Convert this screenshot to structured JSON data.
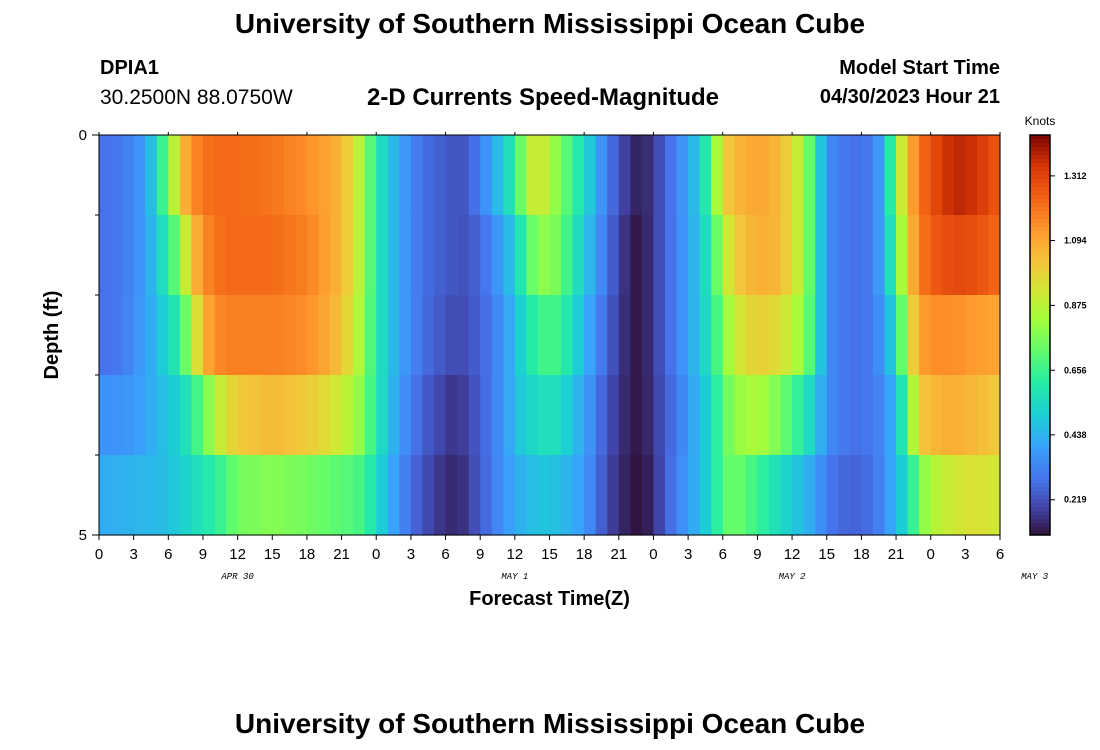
{
  "header": {
    "title": "University of Southern Mississippi Ocean Cube",
    "station_id": "DPIA1",
    "coordinates": "30.2500N  88.0750W",
    "subtitle": "2-D Currents Speed-Magnitude",
    "model_start_label": "Model Start Time",
    "model_start_value": "04/30/2023 Hour 21"
  },
  "footer": {
    "title": "University of Southern Mississippi Ocean Cube"
  },
  "chart_data": {
    "type": "heatmap",
    "xlabel": "Forecast Time(Z)",
    "ylabel": "Depth (ft)",
    "x_tick_labels": [
      "0",
      "3",
      "6",
      "9",
      "12",
      "15",
      "18",
      "21",
      "0",
      "3",
      "6",
      "9",
      "12",
      "15",
      "18",
      "21",
      "0",
      "3",
      "6",
      "9",
      "12",
      "15",
      "18",
      "21",
      "0",
      "3",
      "6"
    ],
    "y_tick_labels": [
      "0",
      "5"
    ],
    "day_labels": [
      {
        "label": "APR 30",
        "center_hour": 12
      },
      {
        "label": "MAY 1",
        "center_hour": 36
      },
      {
        "label": "MAY 2",
        "center_hour": 60
      },
      {
        "label": "MAY 3",
        "center_hour": 81
      }
    ],
    "hours_range": [
      0,
      78
    ],
    "depth_range": [
      0,
      5
    ],
    "colorbar": {
      "title": "Knots",
      "tick_labels": [
        "1.312",
        "1.094",
        "0.875",
        "0.656",
        "0.438",
        "0.219"
      ],
      "tick_values": [
        1.312,
        1.094,
        0.875,
        0.656,
        0.438,
        0.219
      ],
      "range": [
        0.1,
        1.45
      ]
    },
    "depth_rows": [
      0.5,
      1.5,
      2.5,
      3.5,
      4.5
    ],
    "speed_keyframes": [
      {
        "hour": 0,
        "depth_speeds": [
          0.28,
          0.28,
          0.28,
          0.36,
          0.42
        ]
      },
      {
        "hour": 2,
        "depth_speeds": [
          0.3,
          0.3,
          0.3,
          0.36,
          0.43
        ]
      },
      {
        "hour": 4,
        "depth_speeds": [
          0.38,
          0.38,
          0.4,
          0.4,
          0.45
        ]
      },
      {
        "hour": 5,
        "depth_speeds": [
          0.55,
          0.5,
          0.45,
          0.45,
          0.45
        ]
      },
      {
        "hour": 6,
        "depth_speeds": [
          0.75,
          0.62,
          0.55,
          0.48,
          0.47
        ]
      },
      {
        "hour": 7,
        "depth_speeds": [
          1.0,
          0.78,
          0.62,
          0.52,
          0.5
        ]
      },
      {
        "hour": 8,
        "depth_speeds": [
          1.15,
          1.02,
          0.85,
          0.62,
          0.55
        ]
      },
      {
        "hour": 9,
        "depth_speeds": [
          1.2,
          1.15,
          1.05,
          0.72,
          0.58
        ]
      },
      {
        "hour": 10,
        "depth_speeds": [
          1.22,
          1.2,
          1.15,
          0.85,
          0.62
        ]
      },
      {
        "hour": 11,
        "depth_speeds": [
          1.22,
          1.22,
          1.18,
          0.95,
          0.68
        ]
      },
      {
        "hour": 12,
        "depth_speeds": [
          1.22,
          1.22,
          1.18,
          1.0,
          0.75
        ]
      },
      {
        "hour": 15,
        "depth_speeds": [
          1.2,
          1.22,
          1.18,
          1.05,
          0.78
        ]
      },
      {
        "hour": 18,
        "depth_speeds": [
          1.15,
          1.18,
          1.15,
          1.0,
          0.75
        ]
      },
      {
        "hour": 20,
        "depth_speeds": [
          1.1,
          1.1,
          1.08,
          0.95,
          0.72
        ]
      },
      {
        "hour": 21,
        "depth_speeds": [
          1.05,
          1.05,
          1.02,
          0.9,
          0.7
        ]
      },
      {
        "hour": 22,
        "depth_speeds": [
          0.95,
          0.95,
          0.92,
          0.85,
          0.7
        ]
      },
      {
        "hour": 23,
        "depth_speeds": [
          0.8,
          0.8,
          0.78,
          0.75,
          0.65
        ]
      },
      {
        "hour": 24,
        "depth_speeds": [
          0.6,
          0.6,
          0.6,
          0.6,
          0.55
        ]
      },
      {
        "hour": 26,
        "depth_speeds": [
          0.4,
          0.4,
          0.4,
          0.38,
          0.35
        ]
      },
      {
        "hour": 28,
        "depth_speeds": [
          0.28,
          0.28,
          0.28,
          0.25,
          0.22
        ]
      },
      {
        "hour": 30,
        "depth_speeds": [
          0.24,
          0.24,
          0.22,
          0.18,
          0.15
        ]
      },
      {
        "hour": 31,
        "depth_speeds": [
          0.22,
          0.22,
          0.2,
          0.16,
          0.14
        ]
      },
      {
        "hour": 32,
        "depth_speeds": [
          0.24,
          0.22,
          0.22,
          0.2,
          0.18
        ]
      },
      {
        "hour": 34,
        "depth_speeds": [
          0.4,
          0.32,
          0.3,
          0.3,
          0.3
        ]
      },
      {
        "hour": 36,
        "depth_speeds": [
          0.62,
          0.5,
          0.45,
          0.45,
          0.42
        ]
      },
      {
        "hour": 37,
        "depth_speeds": [
          0.85,
          0.68,
          0.58,
          0.52,
          0.45
        ]
      },
      {
        "hour": 38,
        "depth_speeds": [
          0.95,
          0.78,
          0.65,
          0.55,
          0.48
        ]
      },
      {
        "hour": 39,
        "depth_speeds": [
          0.85,
          0.8,
          0.68,
          0.58,
          0.48
        ]
      },
      {
        "hour": 40,
        "depth_speeds": [
          0.75,
          0.72,
          0.65,
          0.55,
          0.46
        ]
      },
      {
        "hour": 42,
        "depth_speeds": [
          0.55,
          0.5,
          0.45,
          0.4,
          0.38
        ]
      },
      {
        "hour": 44,
        "depth_speeds": [
          0.3,
          0.28,
          0.25,
          0.22,
          0.2
        ]
      },
      {
        "hour": 46,
        "depth_speeds": [
          0.15,
          0.12,
          0.12,
          0.12,
          0.11
        ]
      },
      {
        "hour": 47,
        "depth_speeds": [
          0.12,
          0.11,
          0.11,
          0.11,
          0.1
        ]
      },
      {
        "hour": 48,
        "depth_speeds": [
          0.18,
          0.18,
          0.18,
          0.17,
          0.15
        ]
      },
      {
        "hour": 50,
        "depth_speeds": [
          0.32,
          0.32,
          0.32,
          0.3,
          0.32
        ]
      },
      {
        "hour": 52,
        "depth_speeds": [
          0.5,
          0.48,
          0.48,
          0.45,
          0.45
        ]
      },
      {
        "hour": 53,
        "depth_speeds": [
          0.7,
          0.62,
          0.6,
          0.55,
          0.55
        ]
      },
      {
        "hour": 54,
        "depth_speeds": [
          0.98,
          0.85,
          0.75,
          0.7,
          0.7
        ]
      },
      {
        "hour": 55,
        "depth_speeds": [
          1.05,
          1.0,
          0.9,
          0.8,
          0.75
        ]
      },
      {
        "hour": 57,
        "depth_speeds": [
          1.1,
          1.08,
          1.0,
          0.85,
          0.65
        ]
      },
      {
        "hour": 59,
        "depth_speeds": [
          1.05,
          1.05,
          0.95,
          0.75,
          0.55
        ]
      },
      {
        "hour": 61,
        "depth_speeds": [
          0.85,
          0.85,
          0.8,
          0.6,
          0.45
        ]
      },
      {
        "hour": 62,
        "depth_speeds": [
          0.6,
          0.6,
          0.6,
          0.5,
          0.4
        ]
      },
      {
        "hour": 63,
        "depth_speeds": [
          0.35,
          0.35,
          0.35,
          0.35,
          0.3
        ]
      },
      {
        "hour": 65,
        "depth_speeds": [
          0.28,
          0.28,
          0.28,
          0.28,
          0.25
        ]
      },
      {
        "hour": 67,
        "depth_speeds": [
          0.3,
          0.3,
          0.3,
          0.3,
          0.28
        ]
      },
      {
        "hour": 68,
        "depth_speeds": [
          0.45,
          0.45,
          0.4,
          0.35,
          0.35
        ]
      },
      {
        "hour": 69,
        "depth_speeds": [
          0.78,
          0.68,
          0.55,
          0.45,
          0.45
        ]
      },
      {
        "hour": 70,
        "depth_speeds": [
          1.05,
          1.0,
          0.9,
          0.72,
          0.55
        ]
      },
      {
        "hour": 71,
        "depth_speeds": [
          1.2,
          1.18,
          1.1,
          1.0,
          0.75
        ]
      },
      {
        "hour": 72,
        "depth_speeds": [
          1.28,
          1.25,
          1.15,
          1.05,
          0.85
        ]
      },
      {
        "hour": 74,
        "depth_speeds": [
          1.38,
          1.3,
          1.15,
          1.08,
          0.92
        ]
      },
      {
        "hour": 76,
        "depth_speeds": [
          1.35,
          1.28,
          1.12,
          1.05,
          0.95
        ]
      },
      {
        "hour": 78,
        "depth_speeds": [
          1.25,
          1.22,
          1.1,
          1.0,
          0.92
        ]
      }
    ]
  }
}
